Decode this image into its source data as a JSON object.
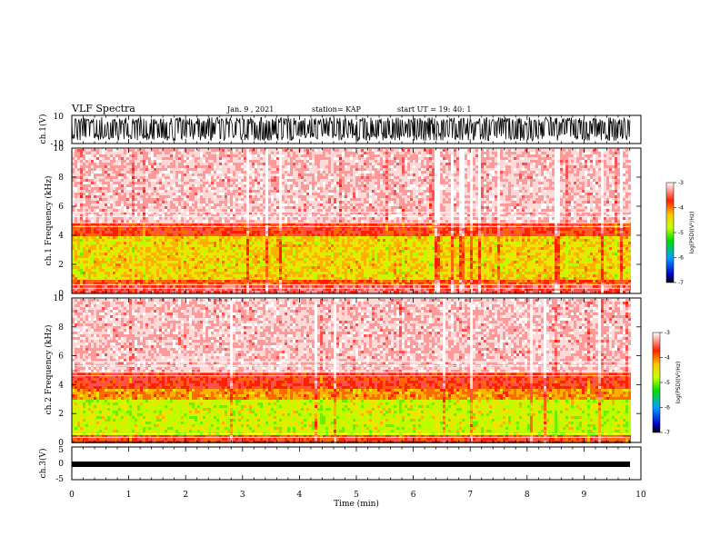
{
  "header": {
    "title": "VLF Spectra",
    "date": "Jan. 9 , 2021",
    "station": "station= KAP",
    "start": "start UT = 19: 40: 1"
  },
  "chart_data": [
    {
      "type": "line",
      "ylabel": "ch.1(V)",
      "ylim": [
        -10,
        10
      ],
      "y_ticks": [
        "10",
        "-10"
      ],
      "xlim": [
        0,
        10
      ],
      "description_note": "dense noisy waveform",
      "color": "#000000"
    },
    {
      "type": "heatmap",
      "ylabel": "ch.1 Frequency (kHz)",
      "xlim": [
        0,
        10
      ],
      "ylim": [
        0,
        10
      ],
      "y_ticks": [
        "0",
        "2",
        "4",
        "6",
        "8",
        "10"
      ],
      "colorbar_label": "log(PSD)(V²/Hz)",
      "colorbar_ticks": [
        "-3",
        "-4",
        "-5",
        "-6",
        "-7"
      ],
      "colorbar_range": [
        -7,
        -3
      ]
    },
    {
      "type": "heatmap",
      "ylabel": "ch.2 Frequency (kHz)",
      "xlim": [
        0,
        10
      ],
      "ylim": [
        0,
        10
      ],
      "y_ticks": [
        "0",
        "2",
        "4",
        "6",
        "8",
        "10"
      ],
      "colorbar_label": "log(PSD)(V²/Hz)",
      "colorbar_ticks": [
        "-3",
        "-4",
        "-5",
        "-6",
        "-7"
      ],
      "colorbar_range": [
        -7,
        -3
      ]
    },
    {
      "type": "line",
      "ylabel": "ch.3(V)",
      "ylim": [
        -5,
        5
      ],
      "y_ticks": [
        "5",
        "0",
        "-5"
      ],
      "xlim": [
        0,
        10
      ],
      "color": "#000000"
    }
  ],
  "xaxis": {
    "label": "Time (min)",
    "ticks": [
      "0",
      "1",
      "2",
      "3",
      "4",
      "5",
      "6",
      "7",
      "8",
      "9",
      "10"
    ]
  }
}
